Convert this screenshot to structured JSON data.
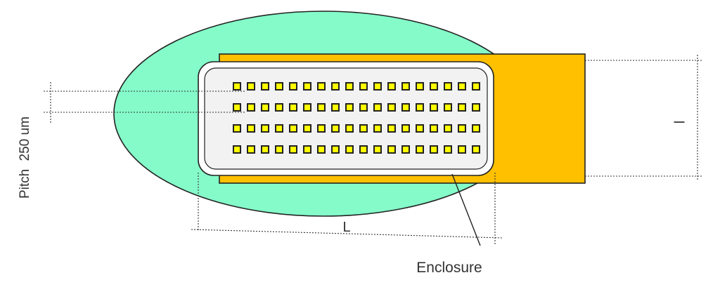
{
  "labels": {
    "pitch_word": "Pitch",
    "pitch_value": "250 um",
    "length": "L",
    "width": "l",
    "enclosure": "Enclosure"
  },
  "colors": {
    "background": "#ffffff",
    "ellipse_fill": "#85fbc9",
    "strip_fill": "#ffc000",
    "enclosure_fill": "#f2f2f2",
    "electrode_fill": "#ffff00",
    "outline": "#222222"
  },
  "electrodes": {
    "rows": 4,
    "columns": 18
  }
}
